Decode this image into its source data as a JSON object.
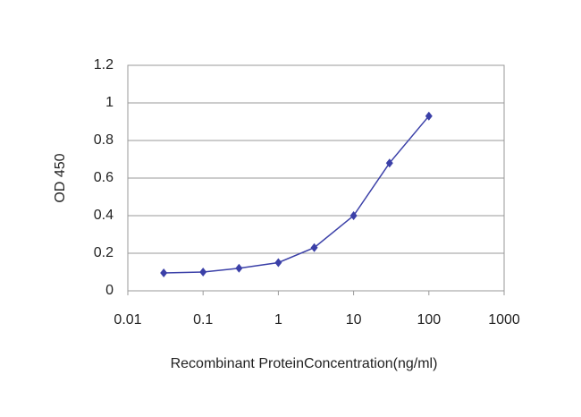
{
  "chart_data": {
    "type": "line",
    "x_label": "Recombinant ProteinConcentration(ng/ml)",
    "y_label": "OD 450",
    "x": [
      0.03,
      0.1,
      0.3,
      1,
      3,
      10,
      30,
      100
    ],
    "series": [
      {
        "name": "OD 450",
        "color": "#3b40a8",
        "values": [
          0.095,
          0.1,
          0.12,
          0.15,
          0.23,
          0.4,
          0.68,
          0.93
        ]
      }
    ],
    "xlim": [
      0.01,
      1000
    ],
    "xticks": [
      0.01,
      0.1,
      1,
      10,
      100,
      1000
    ],
    "xscale": "log",
    "ylim": [
      0,
      1.2
    ],
    "yticks": [
      0,
      0.2,
      0.4,
      0.6,
      0.8,
      1,
      1.2
    ],
    "grid": true
  }
}
